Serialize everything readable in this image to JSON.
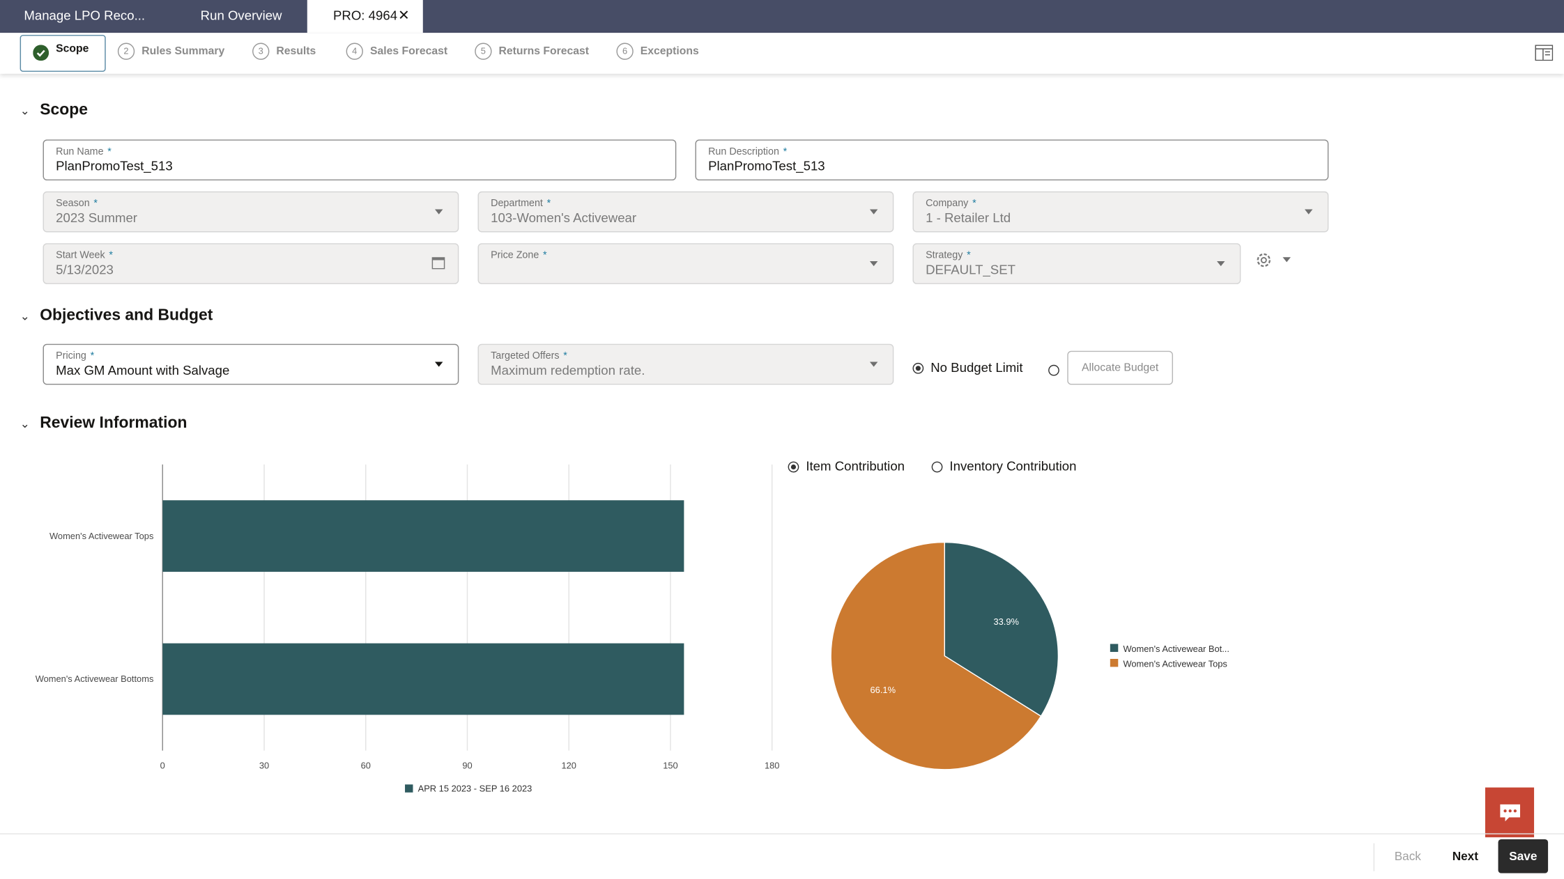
{
  "tabs": [
    "Manage LPO Reco...",
    "Run Overview",
    "PRO: 4964"
  ],
  "steps": [
    {
      "label": "Scope"
    },
    {
      "number": "2",
      "label": "Rules Summary"
    },
    {
      "number": "3",
      "label": "Results"
    },
    {
      "number": "4",
      "label": "Sales Forecast"
    },
    {
      "number": "5",
      "label": "Returns Forecast"
    },
    {
      "number": "6",
      "label": "Exceptions"
    }
  ],
  "required_marker": "*",
  "scope": {
    "title": "Scope",
    "fields": [
      {
        "label": "Run Name",
        "value": "PlanPromoTest_513"
      },
      {
        "label": "Run Description",
        "value": "PlanPromoTest_513"
      },
      {
        "label": "Season",
        "value": "2023 Summer"
      },
      {
        "label": "Department",
        "value": "103-Women's Activewear"
      },
      {
        "label": "Company",
        "value": "1 - Retailer Ltd"
      },
      {
        "label": "Start Week",
        "value": "5/13/2023"
      },
      {
        "label": "Price Zone"
      },
      {
        "label": "Strategy",
        "value": "DEFAULT_SET"
      }
    ]
  },
  "objectives": {
    "title": "Objectives and Budget",
    "fields": [
      {
        "label": "Pricing",
        "value": "Max GM Amount with Salvage"
      },
      {
        "label": "Targeted Offers",
        "value": "Maximum redemption rate."
      }
    ],
    "budget_options": [
      "No Budget Limit"
    ],
    "allocate_button": "Allocate Budget"
  },
  "review": {
    "title": "Review Information",
    "contribution_options": [
      "Item Contribution",
      "Inventory Contribution"
    ]
  },
  "chart_data": [
    {
      "type": "bar",
      "orientation": "horizontal",
      "categories": [
        "Women's Activewear Tops",
        "Women's Activewear Bottoms"
      ],
      "series": [
        {
          "name": "APR 15 2023 - SEP 16 2023",
          "color": "#2f5b60",
          "values": [
            154,
            154
          ]
        }
      ],
      "xlim": [
        0,
        180
      ],
      "xticks": [
        0,
        30,
        60,
        90,
        120,
        150,
        180
      ],
      "grid": true
    },
    {
      "type": "pie",
      "categories": [
        "Women's Activewear Bot...",
        "Women's Activewear Tops"
      ],
      "values": [
        33.9,
        66.1
      ],
      "value_labels": [
        "33.9%",
        "66.1%"
      ],
      "colors": [
        "#2f5b60",
        "#cc7a30"
      ],
      "legend": "right"
    }
  ],
  "footer": {
    "back": "Back",
    "next": "Next",
    "save": "Save"
  }
}
